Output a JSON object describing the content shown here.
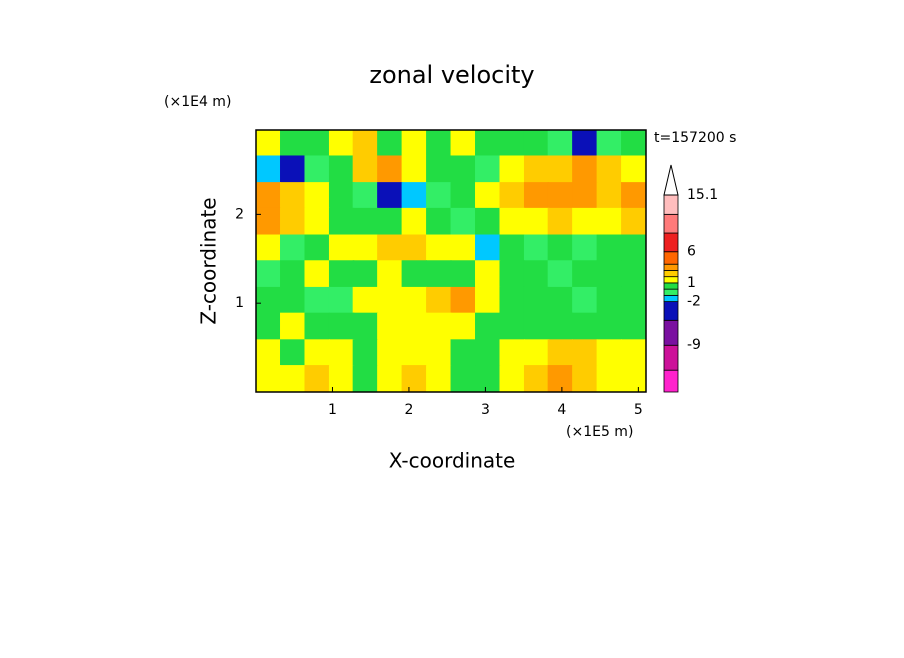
{
  "chart_data": {
    "type": "contour",
    "title": "zonal velocity",
    "time_label": "t=157200 s",
    "xlabel": "X-coordinate",
    "ylabel": "Z-coordinate",
    "x_unit": "(×1E5 m)",
    "y_unit": "(×1E4 m)",
    "xlim": [
      0,
      5.1
    ],
    "ylim": [
      0,
      2.95
    ],
    "xticks": [
      1,
      2,
      3,
      4,
      5
    ],
    "yticks": [
      1,
      2
    ],
    "field": {
      "x": [
        0.16,
        0.48,
        0.8,
        1.12,
        1.43,
        1.75,
        2.07,
        2.39,
        2.71,
        3.03,
        3.35,
        3.67,
        3.98,
        4.3,
        4.62,
        4.94
      ],
      "z": [
        2.8,
        2.51,
        2.21,
        1.92,
        1.62,
        1.33,
        1.03,
        0.74,
        0.44,
        0.15
      ],
      "values": [
        [
          1,
          0,
          0,
          1.5,
          2,
          0,
          1,
          0.5,
          1.5,
          0,
          0.5,
          0,
          -1,
          -3,
          -1,
          0
        ],
        [
          -2,
          -3,
          -1,
          0.5,
          2.5,
          3,
          1.5,
          0.5,
          0,
          -0.5,
          1,
          2,
          2.5,
          3,
          2,
          1
        ],
        [
          3,
          2,
          1,
          0,
          -1,
          -3,
          -2,
          -0.5,
          0,
          1,
          2.5,
          3,
          3.5,
          3,
          2,
          3
        ],
        [
          3,
          2,
          1,
          0.5,
          0,
          0.5,
          1,
          0,
          -1,
          0,
          1,
          1.5,
          2,
          1,
          1.5,
          2
        ],
        [
          1,
          -1,
          0.5,
          1,
          1.5,
          2.5,
          2.5,
          1,
          1.5,
          -2,
          0,
          -0.5,
          0.5,
          -0.5,
          0,
          0.5
        ],
        [
          -1,
          0,
          1,
          0,
          0,
          1,
          0,
          0.5,
          0,
          1,
          0,
          0,
          -1,
          0,
          0.5,
          0
        ],
        [
          0,
          0,
          -1,
          -1,
          1,
          1,
          1,
          2,
          3,
          1,
          0,
          0,
          0,
          -1,
          0,
          0
        ],
        [
          0,
          1,
          0,
          0,
          0.5,
          1,
          1.5,
          1,
          1,
          0,
          0,
          0,
          0,
          0,
          0,
          0
        ],
        [
          1,
          0,
          1,
          1,
          0,
          1,
          1,
          1,
          0,
          0,
          1,
          1.5,
          2,
          2,
          1.5,
          1
        ],
        [
          1,
          1.5,
          2,
          1,
          0,
          1,
          2,
          1,
          0,
          0,
          1,
          2,
          3,
          2,
          1,
          1
        ]
      ]
    },
    "colorbar": {
      "levels": [
        -16.5,
        -13,
        -9,
        -5,
        -2,
        -1,
        0,
        1,
        2,
        3,
        4,
        6,
        9,
        12,
        15.1
      ],
      "colors": [
        "#ff22cc",
        "#cc1199",
        "#7a10a0",
        "#0a10b8",
        "#00c8ff",
        "#33ee66",
        "#22dd44",
        "#ffff00",
        "#ffcc00",
        "#ff9900",
        "#ff6600",
        "#ee2020",
        "#ff7a7a",
        "#ffbdbd"
      ],
      "ticks": [
        15.1,
        6,
        1,
        -2,
        -9
      ]
    }
  }
}
